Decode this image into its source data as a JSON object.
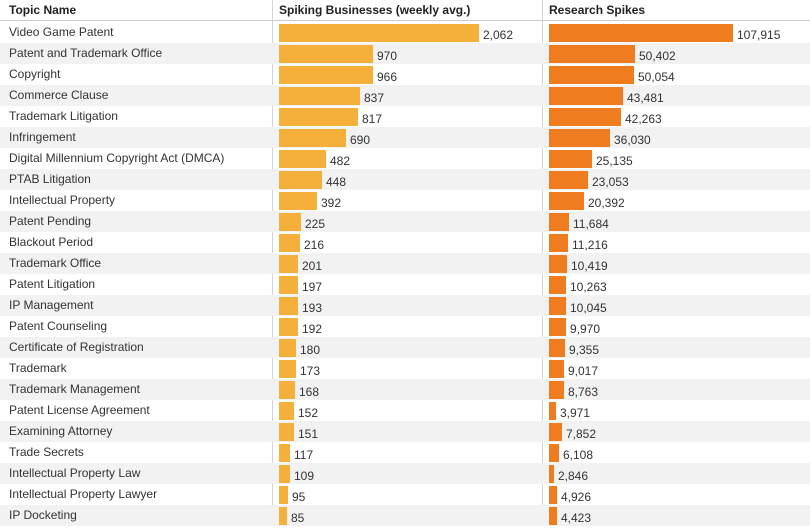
{
  "chart_data": {
    "type": "table",
    "columns": [
      "Topic Name",
      "Spiking Businesses (weekly avg.)",
      "Research Spikes"
    ],
    "colors": {
      "businesses": "#f4b03a",
      "research": "#ef7d1f"
    },
    "rows": [
      {
        "topic": "Video Game Patent",
        "businesses": 2062,
        "businesses_label": "2,062",
        "research": 107915,
        "research_label": "107,915"
      },
      {
        "topic": "Patent and Trademark Office",
        "businesses": 970,
        "businesses_label": "970",
        "research": 50402,
        "research_label": "50,402"
      },
      {
        "topic": "Copyright",
        "businesses": 966,
        "businesses_label": "966",
        "research": 50054,
        "research_label": "50,054"
      },
      {
        "topic": "Commerce Clause",
        "businesses": 837,
        "businesses_label": "837",
        "research": 43481,
        "research_label": "43,481"
      },
      {
        "topic": "Trademark Litigation",
        "businesses": 817,
        "businesses_label": "817",
        "research": 42263,
        "research_label": "42,263"
      },
      {
        "topic": "Infringement",
        "businesses": 690,
        "businesses_label": "690",
        "research": 36030,
        "research_label": "36,030"
      },
      {
        "topic": "Digital Millennium Copyright Act (DMCA)",
        "businesses": 482,
        "businesses_label": "482",
        "research": 25135,
        "research_label": "25,135"
      },
      {
        "topic": "PTAB Litigation",
        "businesses": 448,
        "businesses_label": "448",
        "research": 23053,
        "research_label": "23,053"
      },
      {
        "topic": "Intellectual Property",
        "businesses": 392,
        "businesses_label": "392",
        "research": 20392,
        "research_label": "20,392"
      },
      {
        "topic": "Patent Pending",
        "businesses": 225,
        "businesses_label": "225",
        "research": 11684,
        "research_label": "11,684"
      },
      {
        "topic": "Blackout Period",
        "businesses": 216,
        "businesses_label": "216",
        "research": 11216,
        "research_label": "11,216"
      },
      {
        "topic": "Trademark Office",
        "businesses": 201,
        "businesses_label": "201",
        "research": 10419,
        "research_label": "10,419"
      },
      {
        "topic": "Patent Litigation",
        "businesses": 197,
        "businesses_label": "197",
        "research": 10263,
        "research_label": "10,263"
      },
      {
        "topic": "IP Management",
        "businesses": 193,
        "businesses_label": "193",
        "research": 10045,
        "research_label": "10,045"
      },
      {
        "topic": "Patent Counseling",
        "businesses": 192,
        "businesses_label": "192",
        "research": 9970,
        "research_label": "9,970"
      },
      {
        "topic": "Certificate of Registration",
        "businesses": 180,
        "businesses_label": "180",
        "research": 9355,
        "research_label": "9,355"
      },
      {
        "topic": "Trademark",
        "businesses": 173,
        "businesses_label": "173",
        "research": 9017,
        "research_label": "9,017"
      },
      {
        "topic": "Trademark Management",
        "businesses": 168,
        "businesses_label": "168",
        "research": 8763,
        "research_label": "8,763"
      },
      {
        "topic": "Patent License Agreement",
        "businesses": 152,
        "businesses_label": "152",
        "research": 3971,
        "research_label": "3,971"
      },
      {
        "topic": "Examining Attorney",
        "businesses": 151,
        "businesses_label": "151",
        "research": 7852,
        "research_label": "7,852"
      },
      {
        "topic": "Trade Secrets",
        "businesses": 117,
        "businesses_label": "117",
        "research": 6108,
        "research_label": "6,108"
      },
      {
        "topic": "Intellectual Property Law",
        "businesses": 109,
        "businesses_label": "109",
        "research": 2846,
        "research_label": "2,846"
      },
      {
        "topic": "Intellectual Property Lawyer",
        "businesses": 95,
        "businesses_label": "95",
        "research": 4926,
        "research_label": "4,926"
      },
      {
        "topic": "IP Docketing",
        "businesses": 85,
        "businesses_label": "85",
        "research": 4423,
        "research_label": "4,423"
      }
    ]
  }
}
